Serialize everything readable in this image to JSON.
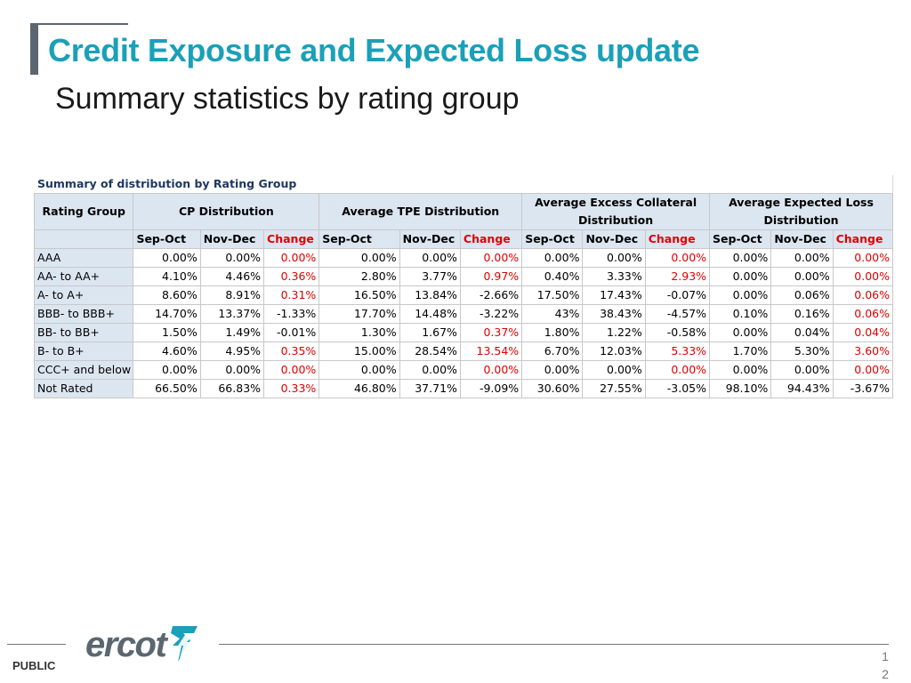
{
  "slide": {
    "title": "Credit Exposure and Expected Loss update",
    "subtitle": "Summary statistics by rating group"
  },
  "table": {
    "caption": "Summary of distribution by Rating Group",
    "rating_group_header": "Rating Group",
    "groups": [
      {
        "line1": "CP Distribution",
        "line2": ""
      },
      {
        "line1": "Average TPE Distribution",
        "line2": ""
      },
      {
        "line1": "Average Excess Collateral",
        "line2": "Distribution"
      },
      {
        "line1": "Average Expected Loss",
        "line2": "Distribution"
      }
    ],
    "subheaders": [
      "Sep-Oct",
      "Nov-Dec",
      "Change"
    ],
    "rows": [
      {
        "label": "AAA",
        "values": [
          "0.00%",
          "0.00%",
          "0.00%",
          "0.00%",
          "0.00%",
          "0.00%",
          "0.00%",
          "0.00%",
          "0.00%",
          "0.00%",
          "0.00%",
          "0.00%"
        ]
      },
      {
        "label": "AA- to AA+",
        "values": [
          "4.10%",
          "4.46%",
          "0.36%",
          "2.80%",
          "3.77%",
          "0.97%",
          "0.40%",
          "3.33%",
          "2.93%",
          "0.00%",
          "0.00%",
          "0.00%"
        ]
      },
      {
        "label": "A- to A+",
        "values": [
          "8.60%",
          "8.91%",
          "0.31%",
          "16.50%",
          "13.84%",
          "-2.66%",
          "17.50%",
          "17.43%",
          "-0.07%",
          "0.00%",
          "0.06%",
          "0.06%"
        ]
      },
      {
        "label": "BBB- to BBB+",
        "values": [
          "14.70%",
          "13.37%",
          "-1.33%",
          "17.70%",
          "14.48%",
          "-3.22%",
          "43%",
          "38.43%",
          "-4.57%",
          "0.10%",
          "0.16%",
          "0.06%"
        ]
      },
      {
        "label": "BB- to BB+",
        "values": [
          "1.50%",
          "1.49%",
          "-0.01%",
          "1.30%",
          "1.67%",
          "0.37%",
          "1.80%",
          "1.22%",
          "-0.58%",
          "0.00%",
          "0.04%",
          "0.04%"
        ]
      },
      {
        "label": "B- to B+",
        "values": [
          "4.60%",
          "4.95%",
          "0.35%",
          "15.00%",
          "28.54%",
          "13.54%",
          "6.70%",
          "12.03%",
          "5.33%",
          "1.70%",
          "5.30%",
          "3.60%"
        ]
      },
      {
        "label": "CCC+ and below",
        "values": [
          "0.00%",
          "0.00%",
          "0.00%",
          "0.00%",
          "0.00%",
          "0.00%",
          "0.00%",
          "0.00%",
          "0.00%",
          "0.00%",
          "0.00%",
          "0.00%"
        ]
      },
      {
        "label": "Not Rated",
        "values": [
          "66.50%",
          "66.83%",
          "0.33%",
          "46.80%",
          "37.71%",
          "-9.09%",
          "30.60%",
          "27.55%",
          "-3.05%",
          "98.10%",
          "94.43%",
          "-3.67%"
        ]
      }
    ]
  },
  "footer": {
    "logo_text": "ercot",
    "classification": "PUBLIC",
    "page_number_line1": "1",
    "page_number_line2": "2"
  },
  "colors": {
    "title": "#1aa0b8",
    "header_fill": "#dce6f1",
    "caption_text": "#1f3864",
    "change_positive": "#e00000",
    "change_negative": "#000000",
    "logo_gray": "#5b6670",
    "logo_teal": "#1aa0b8"
  },
  "icons": {
    "logo_mark": "ercot-lightning-star-icon"
  }
}
